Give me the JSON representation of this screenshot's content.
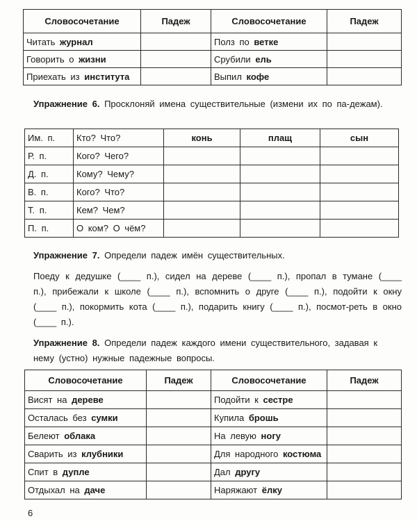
{
  "table1": {
    "headers": [
      "Словосочетание",
      "Падеж",
      "Словосочетание",
      "Падеж"
    ],
    "rows": [
      {
        "left": {
          "text": "Читать",
          "bold": "журнал"
        },
        "right": {
          "text": "Полз по",
          "bold": "ветке"
        }
      },
      {
        "left": {
          "text": "Говорить о",
          "bold": "жизни"
        },
        "right": {
          "text": "Срубили",
          "bold": "ель"
        }
      },
      {
        "left": {
          "text": "Приехать из",
          "bold": "института"
        },
        "right": {
          "text": "Выпил",
          "bold": "кофе"
        }
      }
    ]
  },
  "ex6": {
    "label": "Упражнение 6.",
    "text": "Просклоняй имена существительные (измени их по па-дежам)."
  },
  "table2": {
    "words": [
      "конь",
      "плащ",
      "сын"
    ],
    "rows": [
      {
        "case": "Им. п.",
        "question": "Кто? Что?"
      },
      {
        "case": "Р. п.",
        "question": "Кого? Чего?"
      },
      {
        "case": "Д. п.",
        "question": "Кому? Чему?"
      },
      {
        "case": "В. п.",
        "question": "Кого? Что?"
      },
      {
        "case": "Т. п.",
        "question": "Кем? Чем?"
      },
      {
        "case": "П. п.",
        "question": "О ком? О чём?"
      }
    ]
  },
  "ex7": {
    "label": "Упражнение 7.",
    "text": "Определи падеж имён существительных.",
    "paragraph": "Поеду к дедушке (____ п.), сидел на дереве (____ п.), пропал в тумане (____ п.), прибежали к школе (____ п.), вспомнить о друге (____ п.), подойти к окну (____ п.), покормить кота (____ п.), подарить книгу (____ п.), посмот-реть в окно (____ п.)."
  },
  "ex8": {
    "label": "Упражнение 8.",
    "text": "Определи падеж каждого имени существительного, задавая к нему (устно) нужные падежные вопросы."
  },
  "table3": {
    "headers": [
      "Словосочетание",
      "Падеж",
      "Словосочетание",
      "Падеж"
    ],
    "rows": [
      {
        "left": {
          "text": "Висят на",
          "bold": "дереве"
        },
        "right": {
          "text": "Подойти к",
          "bold": "сестре"
        }
      },
      {
        "left": {
          "text": "Осталась без",
          "bold": "сумки"
        },
        "right": {
          "text": "Купила",
          "bold": "брошь"
        }
      },
      {
        "left": {
          "text": "Белеют",
          "bold": "облака"
        },
        "right": {
          "text": "На левую",
          "bold": "ногу"
        }
      },
      {
        "left": {
          "text": "Сварить из",
          "bold": "клубники"
        },
        "right": {
          "text": "Для народного",
          "bold": "костюма"
        }
      },
      {
        "left": {
          "text": "Спит в",
          "bold": "дупле"
        },
        "right": {
          "text": "Дал",
          "bold": "другу"
        }
      },
      {
        "left": {
          "text": "Отдыхал на",
          "bold": "даче"
        },
        "right": {
          "text": "Наряжают",
          "bold": "ёлку"
        }
      }
    ]
  },
  "page_number": "6"
}
